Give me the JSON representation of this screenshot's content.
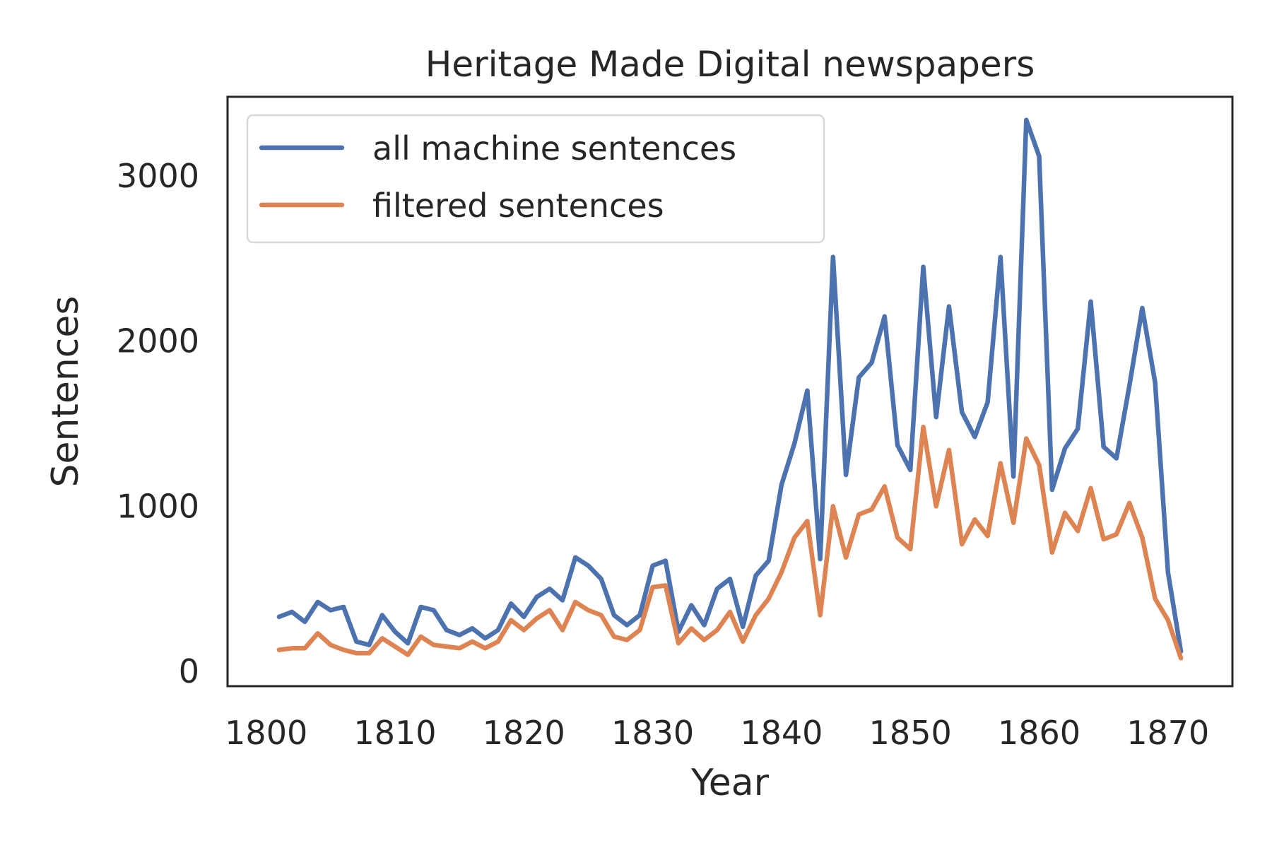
{
  "chart_data": {
    "type": "line",
    "title": "Heritage Made Digital newspapers",
    "xlabel": "Year",
    "ylabel": "Sentences",
    "xlim": [
      1797,
      1875
    ],
    "ylim": [
      -90,
      3480
    ],
    "xticks": [
      1800,
      1810,
      1820,
      1830,
      1840,
      1850,
      1860,
      1870
    ],
    "yticks": [
      0,
      1000,
      2000,
      3000
    ],
    "grid": false,
    "legend_position": "top-left",
    "x": [
      1801,
      1802,
      1803,
      1804,
      1805,
      1806,
      1807,
      1808,
      1809,
      1810,
      1811,
      1812,
      1813,
      1814,
      1815,
      1816,
      1817,
      1818,
      1819,
      1820,
      1821,
      1822,
      1823,
      1824,
      1825,
      1826,
      1827,
      1828,
      1829,
      1830,
      1831,
      1832,
      1833,
      1834,
      1835,
      1836,
      1837,
      1838,
      1839,
      1840,
      1841,
      1842,
      1843,
      1844,
      1845,
      1846,
      1847,
      1848,
      1849,
      1850,
      1851,
      1852,
      1853,
      1854,
      1855,
      1856,
      1857,
      1858,
      1859,
      1860,
      1861,
      1862,
      1863,
      1864,
      1865,
      1866,
      1867,
      1868,
      1869,
      1870,
      1871
    ],
    "series": [
      {
        "name": "all machine sentences",
        "color": "#4c72b0",
        "values": [
          330,
          360,
          300,
          420,
          370,
          390,
          180,
          160,
          340,
          240,
          170,
          390,
          370,
          250,
          220,
          260,
          200,
          250,
          410,
          330,
          450,
          500,
          430,
          690,
          640,
          560,
          340,
          280,
          340,
          640,
          670,
          240,
          400,
          280,
          500,
          560,
          270,
          580,
          670,
          1130,
          1380,
          1700,
          680,
          2510,
          1190,
          1780,
          1870,
          2150,
          1370,
          1220,
          2450,
          1540,
          2210,
          1570,
          1420,
          1630,
          2510,
          1180,
          3340,
          3120,
          1100,
          1350,
          1470,
          2240,
          1360,
          1290,
          1730,
          2200,
          1750,
          600,
          120
        ]
      },
      {
        "name": "filtered sentences",
        "color": "#dd8452",
        "values": [
          130,
          140,
          140,
          230,
          160,
          130,
          110,
          110,
          200,
          150,
          100,
          210,
          160,
          150,
          140,
          180,
          140,
          180,
          310,
          250,
          320,
          370,
          250,
          420,
          370,
          340,
          210,
          190,
          250,
          510,
          520,
          170,
          260,
          190,
          250,
          360,
          180,
          340,
          440,
          600,
          810,
          910,
          340,
          1000,
          690,
          950,
          980,
          1120,
          810,
          740,
          1480,
          1000,
          1340,
          770,
          920,
          820,
          1260,
          900,
          1410,
          1250,
          720,
          960,
          850,
          1110,
          800,
          830,
          1020,
          810,
          440,
          310,
          80
        ]
      }
    ]
  }
}
